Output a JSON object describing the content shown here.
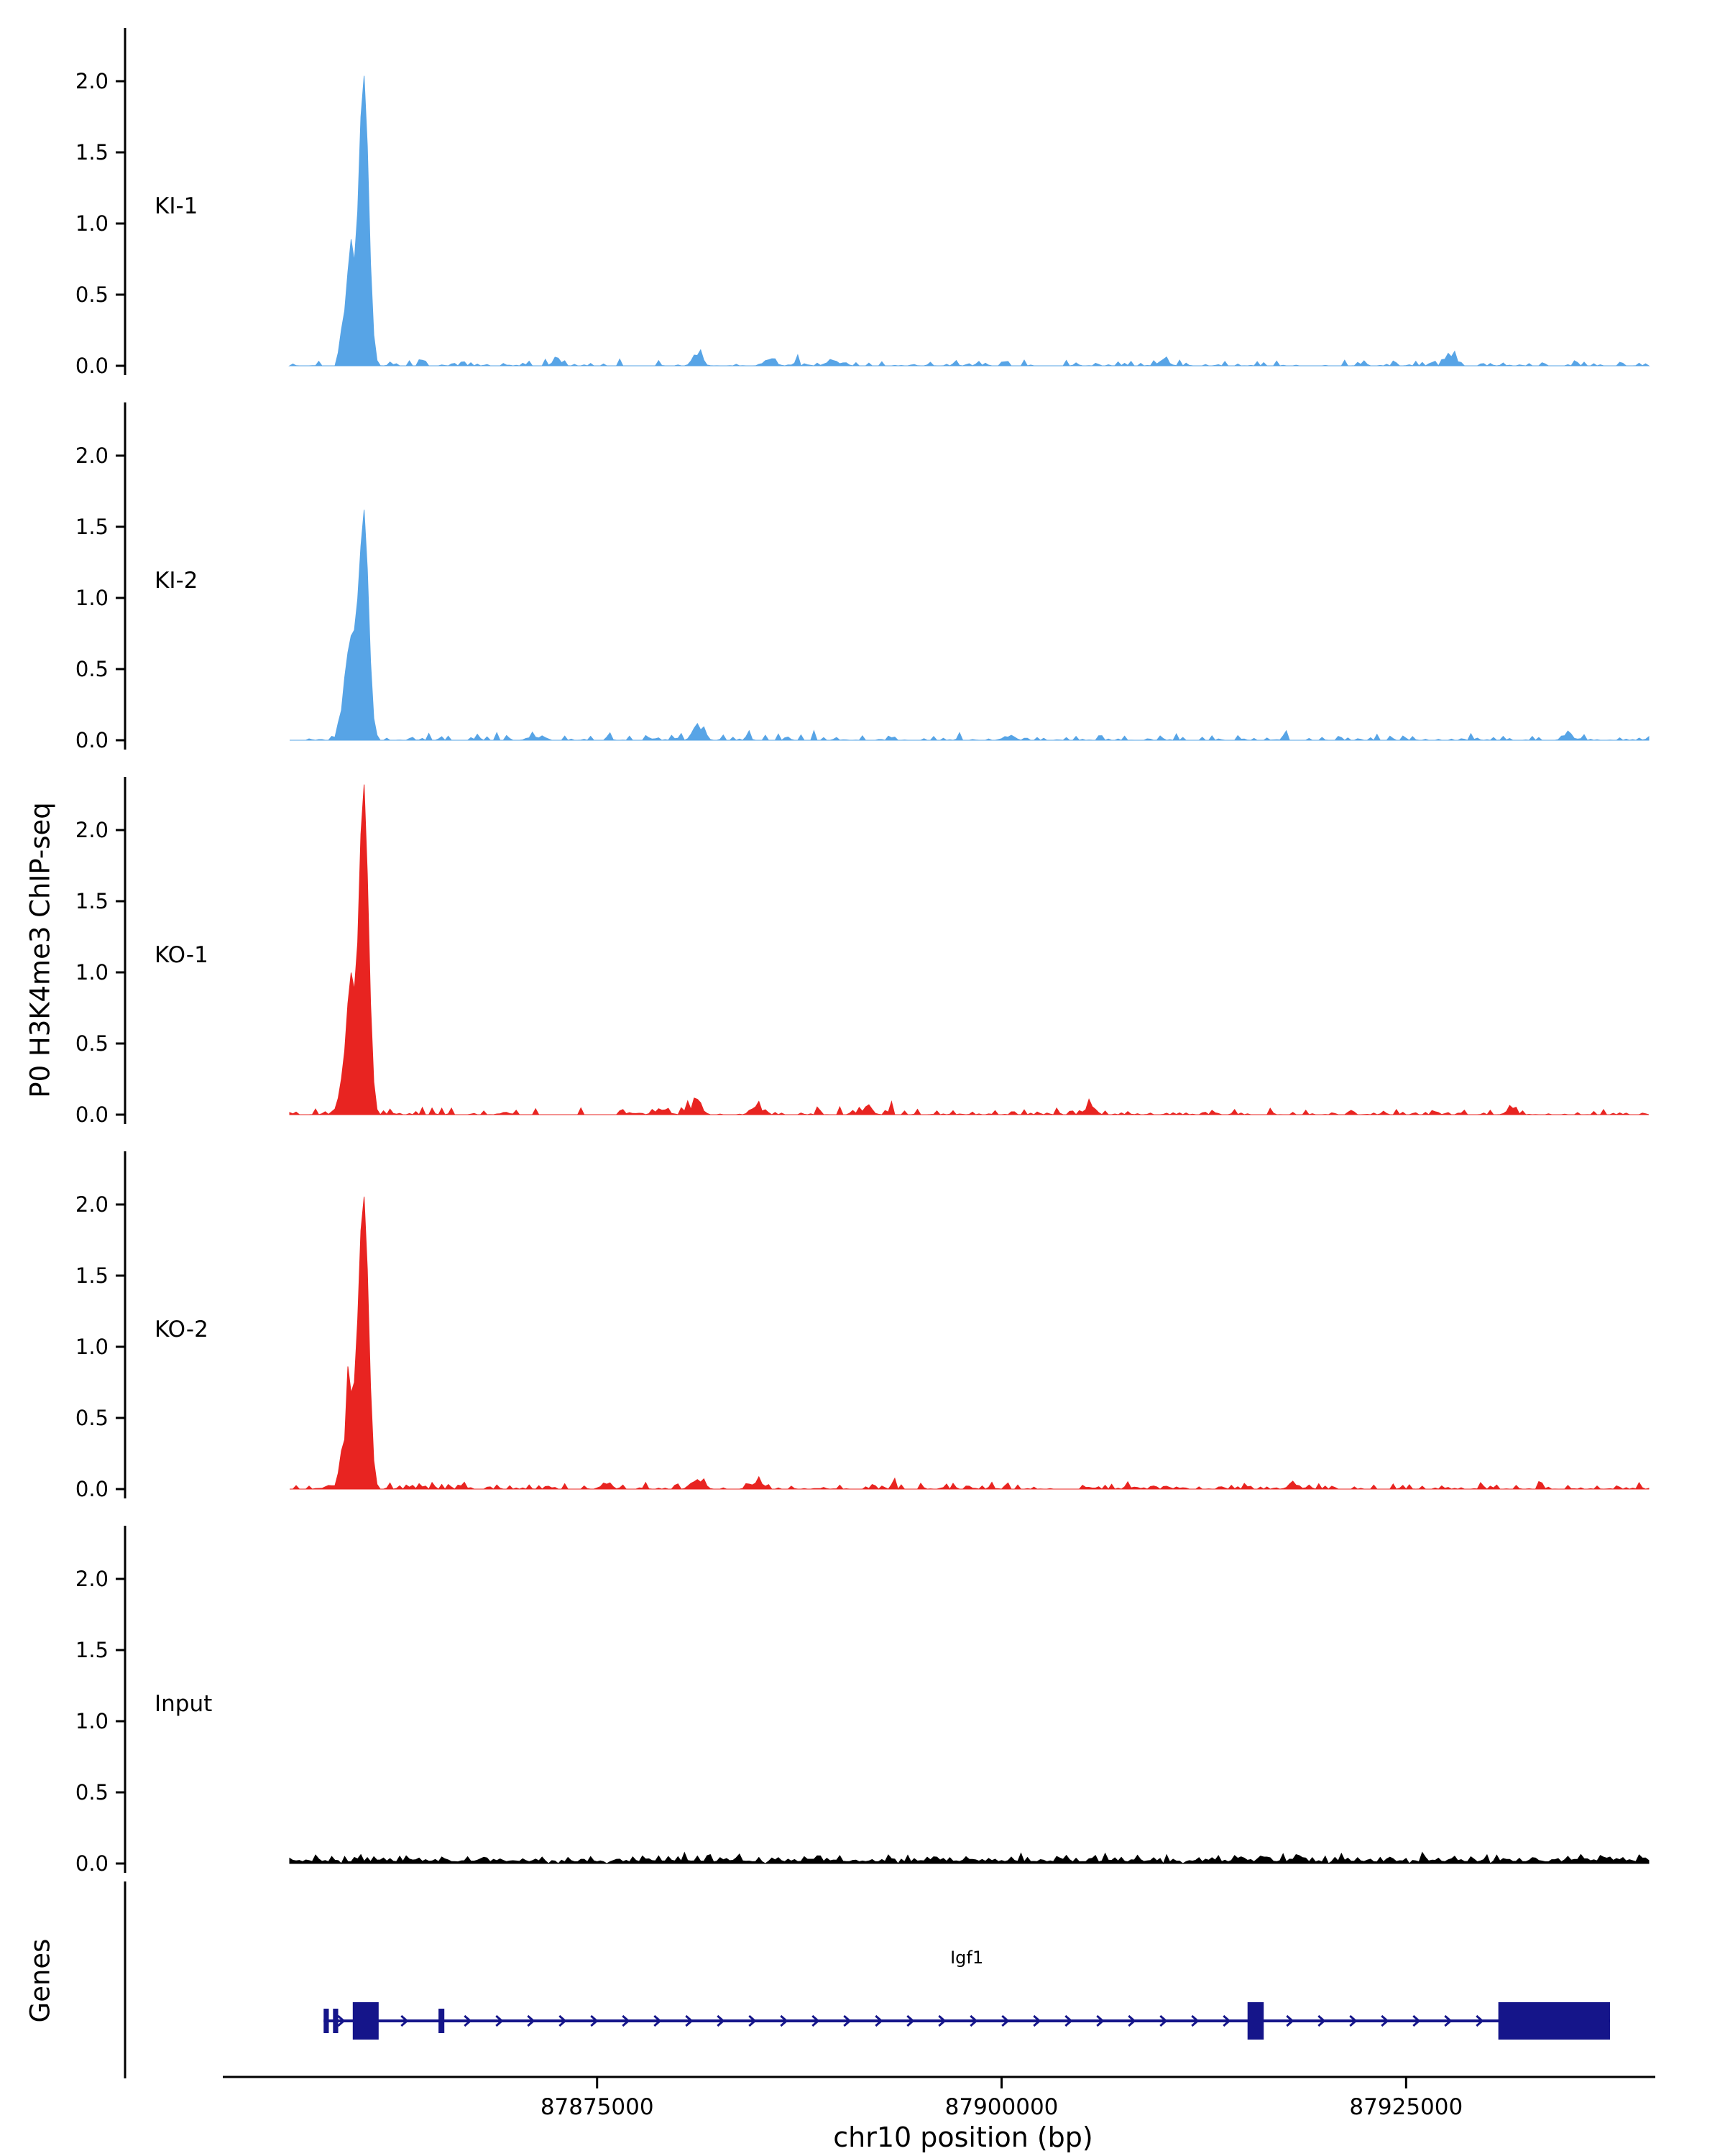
{
  "chart_data": {
    "type": "area",
    "title": "",
    "xlabel": "chr10 position (bp)",
    "ylabel": "P0 H3K4me3 ChIP-seq",
    "chromosome": "chr10",
    "x_domain_bp": [
      87851500,
      87940500
    ],
    "data_range_bp": [
      87856000,
      87940000
    ],
    "bin_bp": 200,
    "grid": "off",
    "legend": "none",
    "x_ticks": [
      {
        "value": 87875000,
        "label": "87875000"
      },
      {
        "value": 87900000,
        "label": "87900000"
      },
      {
        "value": 87925000,
        "label": "87925000"
      }
    ],
    "y_ticks": [
      {
        "value": 0.0,
        "label": "0.0"
      },
      {
        "value": 0.5,
        "label": "0.5"
      },
      {
        "value": 1.0,
        "label": "1.0"
      },
      {
        "value": 1.5,
        "label": "1.5"
      },
      {
        "value": 2.0,
        "label": "2.0"
      }
    ],
    "y_range": [
      0,
      2.37
    ],
    "tracks": [
      {
        "name": "KI-1",
        "color": "#57a4e6",
        "seed": 101,
        "peak": {
          "center": 87860600,
          "sigma": 280,
          "height": 1.95,
          "shoulder": {
            "center": 87859800,
            "sigma": 380,
            "height": 0.72
          }
        },
        "noise": {
          "zero_prob": 0.5,
          "amp": 0.055,
          "base": 0,
          "spike_prob": 0.02,
          "spike_amp": 0.1
        },
        "minor_peaks": [
          {
            "center": 87872500,
            "sigma": 260,
            "height": 0.05
          },
          {
            "center": 87881200,
            "sigma": 260,
            "height": 0.1
          },
          {
            "center": 87885800,
            "sigma": 240,
            "height": 0.07
          },
          {
            "center": 87889500,
            "sigma": 240,
            "height": 0.05
          },
          {
            "center": 87910000,
            "sigma": 300,
            "height": 0.04
          },
          {
            "center": 87927800,
            "sigma": 280,
            "height": 0.1
          }
        ]
      },
      {
        "name": "KI-2",
        "color": "#57a4e6",
        "seed": 202,
        "peak": {
          "center": 87860600,
          "sigma": 280,
          "height": 1.52,
          "shoulder": {
            "center": 87859800,
            "sigma": 380,
            "height": 0.6
          }
        },
        "noise": {
          "zero_prob": 0.5,
          "amp": 0.055,
          "base": 0,
          "spike_prob": 0.02,
          "spike_amp": 0.08
        },
        "minor_peaks": [
          {
            "center": 87871000,
            "sigma": 260,
            "height": 0.04
          },
          {
            "center": 87881300,
            "sigma": 280,
            "height": 0.1
          },
          {
            "center": 87900500,
            "sigma": 260,
            "height": 0.04
          },
          {
            "center": 87935000,
            "sigma": 260,
            "height": 0.05
          }
        ]
      },
      {
        "name": "KO-1",
        "color": "#e82421",
        "seed": 303,
        "peak": {
          "center": 87860600,
          "sigma": 280,
          "height": 2.15,
          "shoulder": {
            "center": 87859800,
            "sigma": 380,
            "height": 0.85
          }
        },
        "noise": {
          "zero_prob": 0.45,
          "amp": 0.055,
          "base": 0,
          "spike_prob": 0.03,
          "spike_amp": 0.09
        },
        "minor_peaks": [
          {
            "center": 87879000,
            "sigma": 240,
            "height": 0.05
          },
          {
            "center": 87881100,
            "sigma": 300,
            "height": 0.1
          },
          {
            "center": 87884800,
            "sigma": 260,
            "height": 0.06
          },
          {
            "center": 87891800,
            "sigma": 240,
            "height": 0.06
          },
          {
            "center": 87905500,
            "sigma": 260,
            "height": 0.06
          },
          {
            "center": 87931500,
            "sigma": 260,
            "height": 0.05
          }
        ]
      },
      {
        "name": "KO-2",
        "color": "#e82421",
        "seed": 404,
        "peak": {
          "center": 87860600,
          "sigma": 280,
          "height": 1.97,
          "shoulder": {
            "center": 87859800,
            "sigma": 380,
            "height": 0.8
          }
        },
        "noise": {
          "zero_prob": 0.45,
          "amp": 0.055,
          "base": 0,
          "spike_prob": 0.03,
          "spike_amp": 0.09
        },
        "minor_peaks": [
          {
            "center": 87875500,
            "sigma": 240,
            "height": 0.05
          },
          {
            "center": 87881200,
            "sigma": 300,
            "height": 0.11
          },
          {
            "center": 87885000,
            "sigma": 260,
            "height": 0.06
          },
          {
            "center": 87918000,
            "sigma": 260,
            "height": 0.04
          }
        ]
      },
      {
        "name": "Input",
        "color": "#000000",
        "seed": 505,
        "peak": null,
        "noise": {
          "zero_prob": 0.03,
          "amp": 0.055,
          "base": 0.012,
          "spike_prob": 0.05,
          "spike_amp": 0.05
        },
        "minor_peaks": []
      }
    ],
    "gene_track": {
      "label": "Genes",
      "gene": {
        "name": "Igf1",
        "strand": "+",
        "color": "#15158a",
        "start": 87858100,
        "end": 87937600,
        "exons": [
          {
            "start": 87858100,
            "end": 87858420,
            "size": "small"
          },
          {
            "start": 87858680,
            "end": 87859000,
            "size": "small"
          },
          {
            "start": 87859900,
            "end": 87861500,
            "size": "tall"
          },
          {
            "start": 87865200,
            "end": 87865560,
            "size": "small"
          },
          {
            "start": 87915200,
            "end": 87916200,
            "size": "tall"
          },
          {
            "start": 87930700,
            "end": 87937600,
            "size": "tall"
          }
        ]
      }
    }
  }
}
